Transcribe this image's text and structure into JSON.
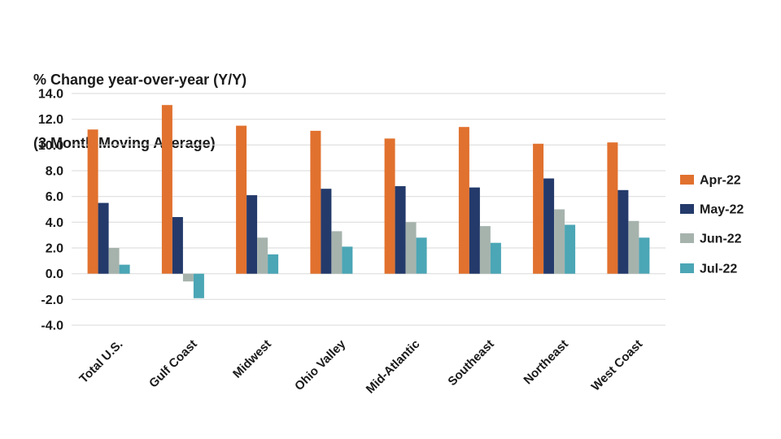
{
  "title": {
    "line1": "% Change year-over-year (Y/Y)",
    "line2": "(3 Month Moving Average)"
  },
  "colors": {
    "background": "#ffffff",
    "gridline": "#d9d9d9",
    "text": "#1a1a1a"
  },
  "chart_data": {
    "type": "bar",
    "title": "% Change year-over-year (Y/Y) (3 Month Moving Average)",
    "xlabel": "",
    "ylabel": "% Change year-over-year (Y/Y), 3 month moving average",
    "categories": [
      "Total U.S.",
      "Gulf Coast",
      "Midwest",
      "Ohio Valley",
      "Mid-Atlantic",
      "Southeast",
      "Northeast",
      "West Coast"
    ],
    "series": [
      {
        "name": "Apr-22",
        "color": "#e1712e",
        "values": [
          11.2,
          13.1,
          11.5,
          11.1,
          10.5,
          11.4,
          10.1,
          10.2
        ]
      },
      {
        "name": "May-22",
        "color": "#243a6b",
        "values": [
          5.5,
          4.4,
          6.1,
          6.6,
          6.8,
          6.7,
          7.4,
          6.5
        ]
      },
      {
        "name": "Jun-22",
        "color": "#a6b3ad",
        "values": [
          2.0,
          -0.6,
          2.8,
          3.3,
          4.0,
          3.7,
          5.0,
          4.1
        ]
      },
      {
        "name": "Jul-22",
        "color": "#4ba6b5",
        "values": [
          0.7,
          -1.9,
          1.5,
          2.1,
          2.8,
          2.4,
          3.8,
          2.8
        ]
      }
    ],
    "ylim": [
      -4.0,
      14.0
    ],
    "ytick_step": 2.0,
    "ytick_labels": [
      "14.0",
      "12.0",
      "10.0",
      "8.0",
      "6.0",
      "4.0",
      "2.0",
      "0.0",
      "-2.0",
      "-4.0"
    ],
    "grid": true,
    "legend_position": "right",
    "legend_entries": [
      "Apr-22",
      "May-22",
      "Jun-22",
      "Jul-22"
    ]
  }
}
